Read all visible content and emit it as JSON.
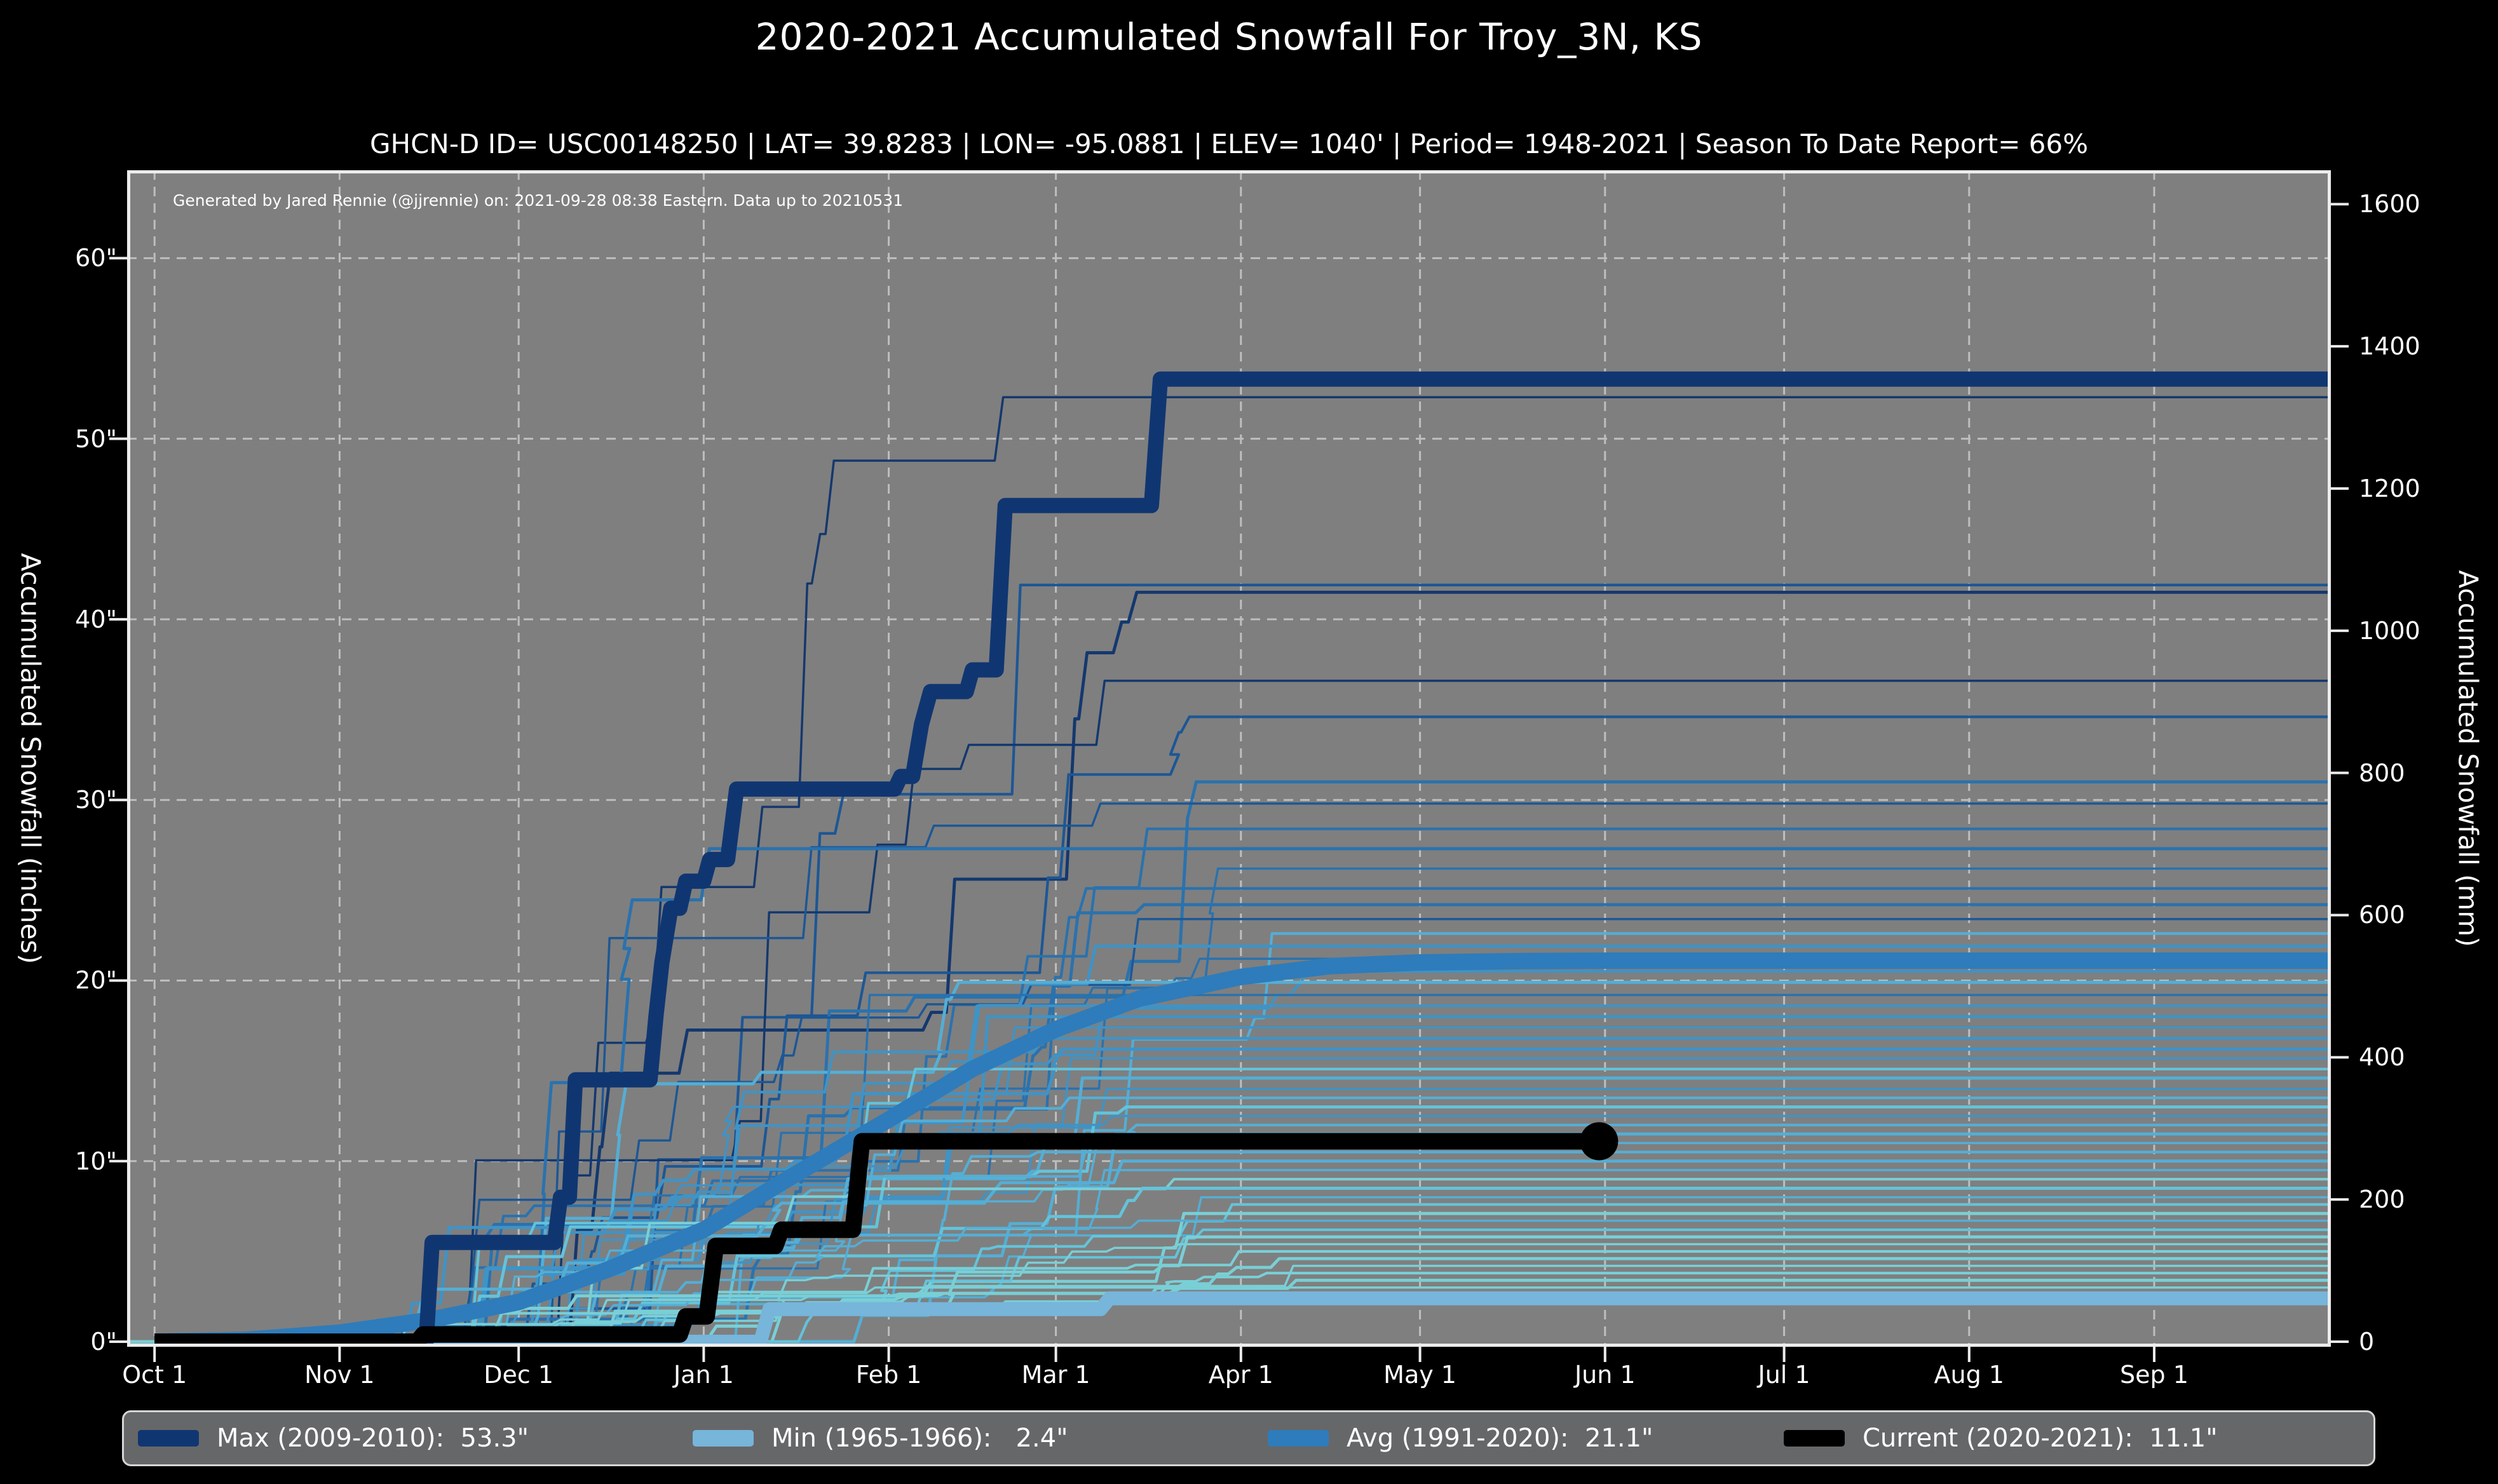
{
  "title": "2020-2021 Accumulated Snowfall For Troy_3N, KS",
  "subtitle": "GHCN-D ID= USC00148250 | LAT= 39.8283 | LON= -95.0881 | ELEV= 1040' | Period= 1948-2021 | Season To Date Report= 66%",
  "annotation": "Generated by Jared Rennie (@jjrennie) on: 2021-09-28 08:38 Eastern. Data up to 20210531",
  "colors": {
    "page_bg": "#000000",
    "plot_bg": "#7f7f7f",
    "grid": "#d4d4d4",
    "spine": "#ececec",
    "text": "#ffffff",
    "legend_bg": "#666769",
    "legend_border": "#d6d6d6",
    "max_line": "#103672",
    "min_line": "#77b5da",
    "avg_line": "#2e7cbb",
    "current_line": "#000000"
  },
  "axes": {
    "left_label": "Accumulated Snowfall (inches)",
    "right_label": "Accumulated Snowfall (mm)",
    "left_ticks": [
      {
        "label": "0\"",
        "inches": 0
      },
      {
        "label": "10\"",
        "inches": 10
      },
      {
        "label": "20\"",
        "inches": 20
      },
      {
        "label": "30\"",
        "inches": 30
      },
      {
        "label": "40\"",
        "inches": 40
      },
      {
        "label": "50\"",
        "inches": 50
      },
      {
        "label": "60\"",
        "inches": 60
      }
    ],
    "right_ticks": [
      {
        "label": "0",
        "mm": 0
      },
      {
        "label": "200",
        "mm": 200
      },
      {
        "label": "400",
        "mm": 400
      },
      {
        "label": "600",
        "mm": 600
      },
      {
        "label": "800",
        "mm": 800
      },
      {
        "label": "1000",
        "mm": 1000
      },
      {
        "label": "1200",
        "mm": 1200
      },
      {
        "label": "1400",
        "mm": 1400
      },
      {
        "label": "1600",
        "mm": 1600
      }
    ],
    "x_ticks": [
      {
        "label": "Oct 1",
        "day": 0
      },
      {
        "label": "Nov 1",
        "day": 31
      },
      {
        "label": "Dec 1",
        "day": 61
      },
      {
        "label": "Jan 1",
        "day": 92
      },
      {
        "label": "Feb 1",
        "day": 123
      },
      {
        "label": "Mar 1",
        "day": 151
      },
      {
        "label": "Apr 1",
        "day": 182
      },
      {
        "label": "May 1",
        "day": 212
      },
      {
        "label": "Jun 1",
        "day": 243
      },
      {
        "label": "Jul 1",
        "day": 273
      },
      {
        "label": "Aug 1",
        "day": 304
      },
      {
        "label": "Sep 1",
        "day": 335
      }
    ]
  },
  "legend": {
    "items": [
      {
        "name": "max",
        "label": "Max (2009-2010):  53.3\"",
        "color": "#103672"
      },
      {
        "name": "min",
        "label": "Min (1965-1966):   2.4\"",
        "color": "#77b5da"
      },
      {
        "name": "avg",
        "label": "Avg (1991-2020):  21.1\"",
        "color": "#2e7cbb"
      },
      {
        "name": "current",
        "label": "Current (2020-2021):  11.1\"",
        "color": "#000000"
      }
    ]
  },
  "chart_data": {
    "type": "line",
    "title": "2020-2021 Accumulated Snowfall For Troy_3N, KS",
    "x_unit": "days since Oct 1 (season runs Oct 1 - Sep 30)",
    "x_range_days": [
      -4.6,
      364.6
    ],
    "ylim_inches": [
      0,
      63.2
    ],
    "ylim_mm": [
      0,
      1605
    ],
    "grid": "dashed, both axes, monthly x / 10-inch y",
    "legend_position": "bottom strip outside axes",
    "series": [
      {
        "name": "Max (2009-2010)",
        "final_inches": 53.3,
        "color": "#103672",
        "width": 24,
        "points_day_inches": [
          [
            0,
            0
          ],
          [
            45.5,
            0
          ],
          [
            46.5,
            5.5
          ],
          [
            67,
            5.5
          ],
          [
            68,
            8
          ],
          [
            69.5,
            8
          ],
          [
            70.5,
            14.5
          ],
          [
            83,
            14.5
          ],
          [
            84,
            18
          ],
          [
            85,
            21
          ],
          [
            86.5,
            24
          ],
          [
            88,
            24
          ],
          [
            89,
            25.5
          ],
          [
            92,
            25.5
          ],
          [
            93,
            26.7
          ],
          [
            96,
            26.7
          ],
          [
            97.5,
            30.6
          ],
          [
            124,
            30.6
          ],
          [
            125,
            31.3
          ],
          [
            127,
            31.3
          ],
          [
            128.5,
            34.2
          ],
          [
            130,
            36
          ],
          [
            136,
            36
          ],
          [
            137,
            37.2
          ],
          [
            141,
            37.2
          ],
          [
            142.5,
            46.3
          ],
          [
            167,
            46.3
          ],
          [
            168.5,
            53.3
          ],
          [
            364.6,
            53.3
          ]
        ]
      },
      {
        "name": "Min (1965-1966)",
        "final_inches": 2.4,
        "color": "#77b5da",
        "width": 22,
        "points_day_inches": [
          [
            0,
            0
          ],
          [
            101.5,
            0
          ],
          [
            103,
            1.8
          ],
          [
            158.5,
            1.8
          ],
          [
            160,
            2.4
          ],
          [
            364.6,
            2.4
          ]
        ]
      },
      {
        "name": "Avg (1991-2020)",
        "final_inches": 21.1,
        "color": "#2e7cbb",
        "width": 26,
        "points_day_inches": [
          [
            0,
            0
          ],
          [
            15,
            0.1
          ],
          [
            31,
            0.5
          ],
          [
            46,
            1.2
          ],
          [
            61,
            2.2
          ],
          [
            76,
            4.0
          ],
          [
            92,
            6.2
          ],
          [
            107,
            9.2
          ],
          [
            123,
            12.3
          ],
          [
            137,
            15.1
          ],
          [
            151,
            17.3
          ],
          [
            165,
            19.0
          ],
          [
            182,
            20.2
          ],
          [
            197,
            20.8
          ],
          [
            212,
            21.0
          ],
          [
            230,
            21.08
          ],
          [
            243,
            21.1
          ],
          [
            364.6,
            21.1
          ]
        ]
      },
      {
        "name": "Current (2020-2021)",
        "final_inches": 11.1,
        "color": "#000000",
        "width": 26,
        "end_marker": {
          "day": 242,
          "inches": 11.1,
          "radius": 30
        },
        "points_day_inches": [
          [
            0,
            0
          ],
          [
            44,
            0
          ],
          [
            45,
            0.4
          ],
          [
            88,
            0.4
          ],
          [
            89,
            1.4
          ],
          [
            92.5,
            1.4
          ],
          [
            94,
            5.3
          ],
          [
            104,
            5.3
          ],
          [
            105,
            6.2
          ],
          [
            117,
            6.2
          ],
          [
            118.5,
            11.1
          ],
          [
            242,
            11.1
          ]
        ]
      }
    ],
    "background_years": {
      "description": "thin step lines, one per season 1948-2021, shaded dark navy (high totals) to light cyan (low totals)",
      "palette": [
        "#14386e",
        "#1d5795",
        "#2a72ae",
        "#3f93c6",
        "#54aed5",
        "#63c3da",
        "#79cfd6"
      ],
      "final_inches": [
        52.3,
        41.9,
        41.5,
        36.6,
        34.6,
        31.0,
        29.8,
        28.4,
        27.3,
        26.2,
        25.1,
        24.2,
        23.4,
        22.6,
        21.9,
        21.2,
        20.5,
        19.9,
        19.2,
        18.6,
        18.0,
        17.4,
        16.8,
        16.2,
        15.7,
        15.1,
        14.6,
        14.0,
        13.5,
        13.0,
        12.5,
        12.0,
        11.5,
        11.0,
        10.5,
        10.0,
        9.5,
        9.0,
        8.5,
        8.0,
        7.6,
        7.1,
        6.7,
        6.2,
        5.8,
        5.4,
        5.0,
        4.6,
        4.2,
        3.8,
        3.4,
        3.0
      ]
    }
  }
}
